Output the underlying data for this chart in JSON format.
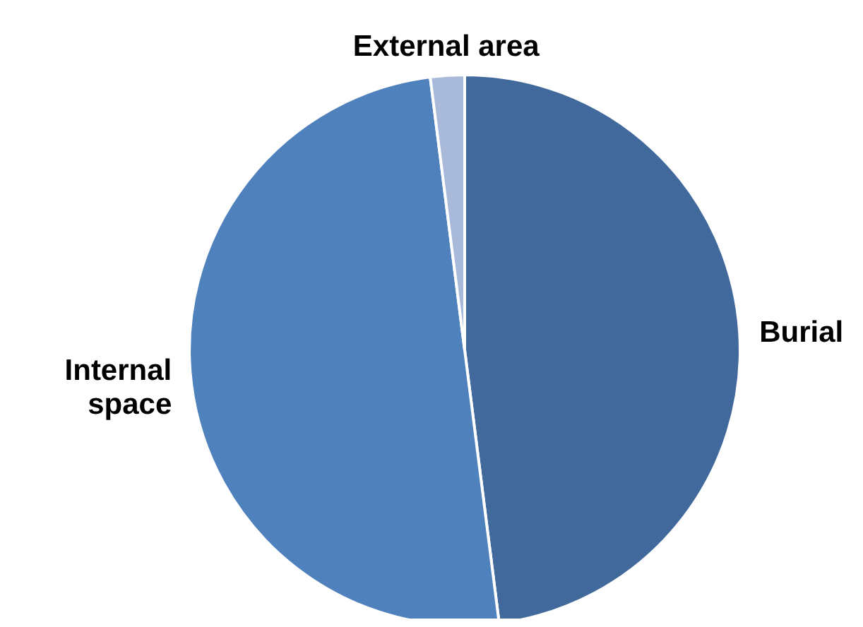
{
  "chart_data": {
    "type": "pie",
    "categories": [
      "Burial",
      "Internal space",
      "External area"
    ],
    "values": [
      48,
      50,
      2
    ],
    "colors": [
      "#41699c",
      "#4f81bd",
      "#a9b9d9"
    ]
  }
}
